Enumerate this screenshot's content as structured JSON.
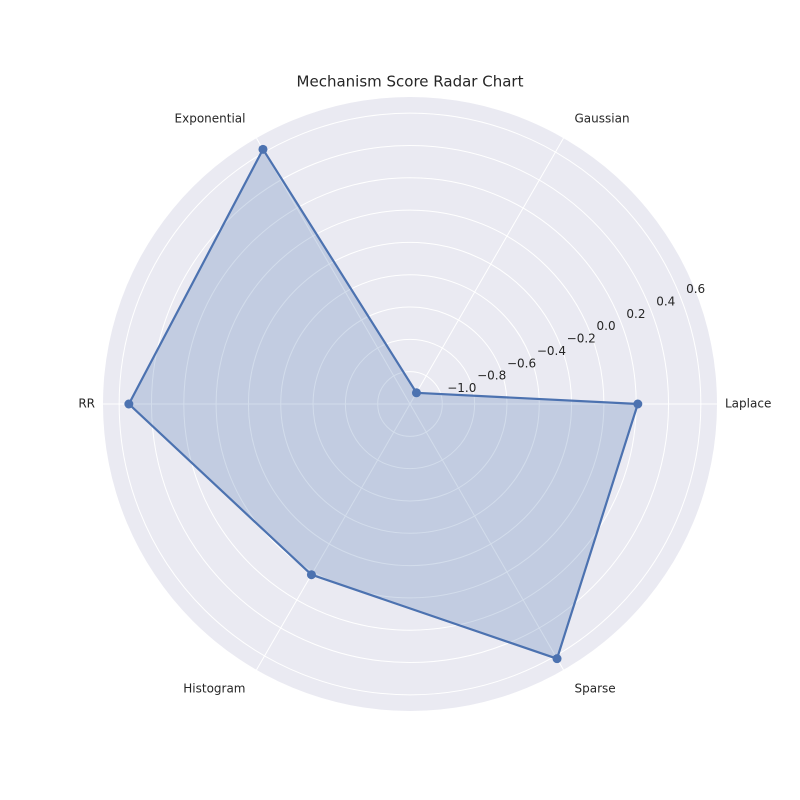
{
  "chart_data": {
    "type": "radar",
    "title": "Mechanism Score Radar Chart",
    "categories": [
      "Laplace",
      "Gaussian",
      "Exponential",
      "RR",
      "Histogram",
      "Sparse"
    ],
    "series": [
      {
        "color": "#4c72b0",
        "values": [
          0.21,
          -1.12,
          0.62,
          0.54,
          0.02,
          0.62
        ]
      }
    ],
    "ylim": [
      -1.2,
      0.7
    ],
    "yticks": [
      {
        "value": -1.0,
        "label": "−1.0"
      },
      {
        "value": -0.8,
        "label": "−0.8"
      },
      {
        "value": -0.6,
        "label": "−0.6"
      },
      {
        "value": -0.4,
        "label": "−0.4"
      },
      {
        "value": -0.2,
        "label": "−0.2"
      },
      {
        "value": 0.0,
        "label": "0.0"
      },
      0.2,
      0.4,
      0.6
    ],
    "grid": true
  }
}
